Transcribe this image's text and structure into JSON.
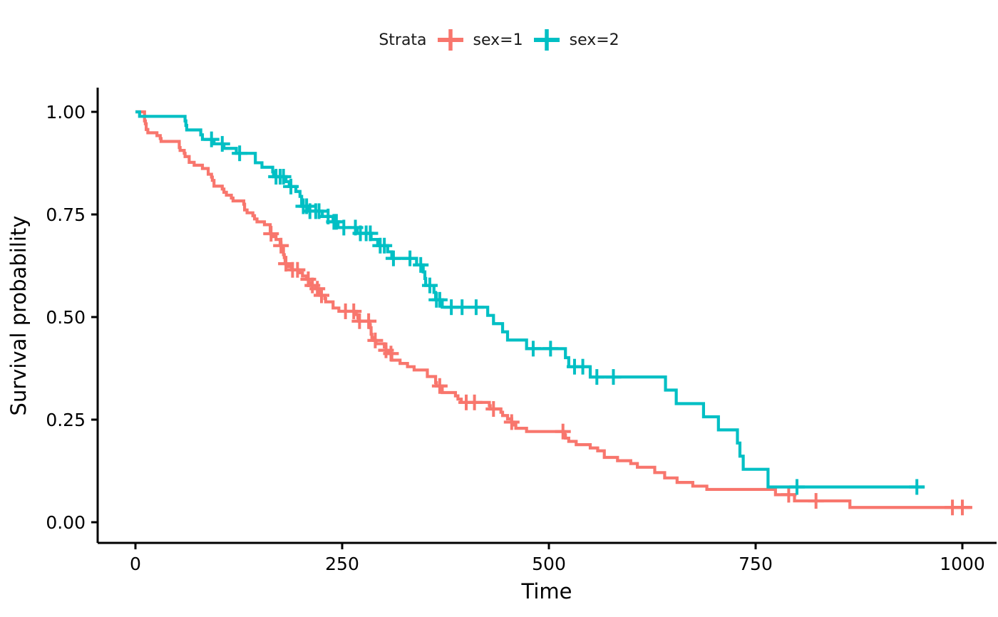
{
  "legend": {
    "title": "Strata",
    "items": [
      {
        "label": "sex=1"
      },
      {
        "label": "sex=2"
      }
    ]
  },
  "chart_data": {
    "type": "line",
    "subtype": "kaplan-meier-step-survival",
    "title": "",
    "xlabel": "Time",
    "ylabel": "Survival probability",
    "grid": false,
    "legend_position": "top",
    "x_axis": {
      "range": [
        0,
        1000
      ],
      "ticks": [
        0,
        250,
        500,
        750,
        1000
      ],
      "tick_labels": [
        "0",
        "250",
        "500",
        "750",
        "1000"
      ]
    },
    "y_axis": {
      "range": [
        0,
        1
      ],
      "ticks": [
        0,
        0.25,
        0.5,
        0.75,
        1
      ],
      "tick_labels": [
        "0.00",
        "0.25",
        "0.50",
        "0.75",
        "1.00"
      ]
    },
    "series": [
      {
        "name": "sex=1",
        "color": "#F8766D",
        "steps": [
          [
            0,
            1.0
          ],
          [
            11,
            0.978
          ],
          [
            12,
            0.971
          ],
          [
            13,
            0.957
          ],
          [
            15,
            0.949
          ],
          [
            26,
            0.942
          ],
          [
            30,
            0.935
          ],
          [
            31,
            0.928
          ],
          [
            53,
            0.913
          ],
          [
            54,
            0.906
          ],
          [
            59,
            0.899
          ],
          [
            60,
            0.891
          ],
          [
            65,
            0.877
          ],
          [
            71,
            0.87
          ],
          [
            81,
            0.862
          ],
          [
            88,
            0.848
          ],
          [
            92,
            0.841
          ],
          [
            93,
            0.833
          ],
          [
            95,
            0.819
          ],
          [
            105,
            0.812
          ],
          [
            107,
            0.804
          ],
          [
            110,
            0.797
          ],
          [
            116,
            0.79
          ],
          [
            118,
            0.783
          ],
          [
            131,
            0.775
          ],
          [
            132,
            0.761
          ],
          [
            135,
            0.754
          ],
          [
            142,
            0.747
          ],
          [
            144,
            0.739
          ],
          [
            147,
            0.732
          ],
          [
            156,
            0.725
          ],
          [
            163,
            0.703
          ],
          [
            166,
            0.696
          ],
          [
            170,
            0.689
          ],
          [
            175,
            0.681
          ],
          [
            176,
            0.674
          ],
          [
            177,
            0.667
          ],
          [
            179,
            0.652
          ],
          [
            180,
            0.645
          ],
          [
            181,
            0.63
          ],
          [
            183,
            0.623
          ],
          [
            189,
            0.615
          ],
          [
            197,
            0.608
          ],
          [
            202,
            0.6
          ],
          [
            207,
            0.592
          ],
          [
            210,
            0.584
          ],
          [
            212,
            0.577
          ],
          [
            218,
            0.569
          ],
          [
            222,
            0.561
          ],
          [
            223,
            0.553
          ],
          [
            229,
            0.545
          ],
          [
            230,
            0.537
          ],
          [
            239,
            0.522
          ],
          [
            246,
            0.514
          ],
          [
            267,
            0.506
          ],
          [
            269,
            0.498
          ],
          [
            270,
            0.49
          ],
          [
            283,
            0.482
          ],
          [
            284,
            0.474
          ],
          [
            285,
            0.458
          ],
          [
            286,
            0.45
          ],
          [
            288,
            0.443
          ],
          [
            291,
            0.435
          ],
          [
            301,
            0.427
          ],
          [
            303,
            0.419
          ],
          [
            306,
            0.411
          ],
          [
            310,
            0.395
          ],
          [
            320,
            0.387
          ],
          [
            329,
            0.379
          ],
          [
            337,
            0.371
          ],
          [
            353,
            0.355
          ],
          [
            363,
            0.34
          ],
          [
            364,
            0.332
          ],
          [
            371,
            0.316
          ],
          [
            387,
            0.308
          ],
          [
            390,
            0.3
          ],
          [
            394,
            0.292
          ],
          [
            428,
            0.284
          ],
          [
            429,
            0.276
          ],
          [
            442,
            0.268
          ],
          [
            444,
            0.26
          ],
          [
            450,
            0.252
          ],
          [
            455,
            0.244
          ],
          [
            457,
            0.237
          ],
          [
            460,
            0.229
          ],
          [
            473,
            0.221
          ],
          [
            519,
            0.213
          ],
          [
            520,
            0.205
          ],
          [
            524,
            0.197
          ],
          [
            533,
            0.189
          ],
          [
            550,
            0.181
          ],
          [
            559,
            0.174
          ],
          [
            567,
            0.158
          ],
          [
            583,
            0.15
          ],
          [
            599,
            0.143
          ],
          [
            607,
            0.134
          ],
          [
            628,
            0.121
          ],
          [
            640,
            0.108
          ],
          [
            655,
            0.097
          ],
          [
            674,
            0.088
          ],
          [
            691,
            0.08
          ],
          [
            774,
            0.067
          ],
          [
            797,
            0.052
          ],
          [
            864,
            0.036
          ],
          [
            1012,
            0.036
          ]
        ],
        "censor_times": [
          164,
          176,
          182,
          190,
          196,
          209,
          214,
          220,
          225,
          254,
          264,
          271,
          282,
          290,
          303,
          309,
          368,
          400,
          410,
          433,
          455,
          517,
          790,
          823,
          988,
          1000
        ]
      },
      {
        "name": "sex=2",
        "color": "#00BFC4",
        "steps": [
          [
            0,
            1.0
          ],
          [
            5,
            0.989
          ],
          [
            60,
            0.978
          ],
          [
            61,
            0.967
          ],
          [
            62,
            0.956
          ],
          [
            79,
            0.944
          ],
          [
            81,
            0.933
          ],
          [
            95,
            0.922
          ],
          [
            107,
            0.911
          ],
          [
            122,
            0.899
          ],
          [
            145,
            0.876
          ],
          [
            153,
            0.865
          ],
          [
            166,
            0.854
          ],
          [
            167,
            0.842
          ],
          [
            182,
            0.83
          ],
          [
            186,
            0.818
          ],
          [
            194,
            0.806
          ],
          [
            199,
            0.794
          ],
          [
            201,
            0.77
          ],
          [
            208,
            0.758
          ],
          [
            226,
            0.745
          ],
          [
            239,
            0.732
          ],
          [
            245,
            0.718
          ],
          [
            268,
            0.704
          ],
          [
            285,
            0.689
          ],
          [
            293,
            0.674
          ],
          [
            305,
            0.659
          ],
          [
            310,
            0.643
          ],
          [
            340,
            0.627
          ],
          [
            348,
            0.61
          ],
          [
            350,
            0.594
          ],
          [
            351,
            0.577
          ],
          [
            361,
            0.56
          ],
          [
            363,
            0.542
          ],
          [
            371,
            0.524
          ],
          [
            426,
            0.504
          ],
          [
            433,
            0.484
          ],
          [
            444,
            0.464
          ],
          [
            450,
            0.444
          ],
          [
            473,
            0.423
          ],
          [
            520,
            0.401
          ],
          [
            524,
            0.379
          ],
          [
            550,
            0.354
          ],
          [
            641,
            0.322
          ],
          [
            654,
            0.289
          ],
          [
            687,
            0.257
          ],
          [
            705,
            0.225
          ],
          [
            728,
            0.193
          ],
          [
            731,
            0.161
          ],
          [
            735,
            0.129
          ],
          [
            765,
            0.086
          ],
          [
            954,
            0.086
          ]
        ],
        "censor_times": [
          92,
          105,
          126,
          170,
          175,
          179,
          188,
          203,
          207,
          211,
          218,
          222,
          233,
          240,
          243,
          252,
          266,
          272,
          279,
          284,
          296,
          301,
          312,
          332,
          345,
          356,
          364,
          368,
          382,
          395,
          412,
          481,
          502,
          531,
          541,
          558,
          578,
          800,
          945
        ]
      }
    ]
  }
}
